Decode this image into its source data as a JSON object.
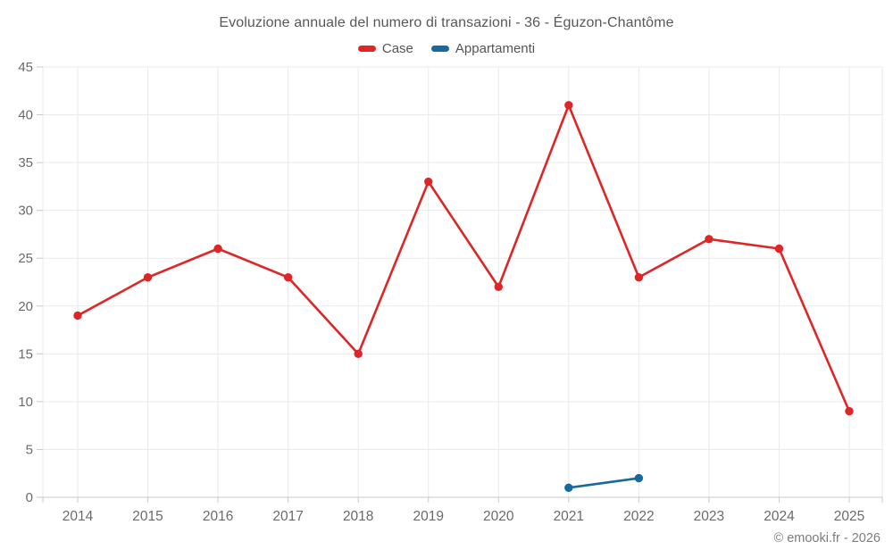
{
  "header": {
    "title": "Evoluzione annuale del numero di transazioni - 36 - Éguzon-Chantôme"
  },
  "footer": {
    "credit": "© emooki.fr - 2026"
  },
  "colors": {
    "case_red": "#de2626",
    "appartamenti_blue": "#17699e",
    "gridline": "#eaeaea",
    "axis_line": "#c9c9c9",
    "tick": "#c9c9c9",
    "axis_label": "#6b6b6b",
    "title_text": "#57585c",
    "legend_text": "#555558",
    "credit_text": "#7c7c7e"
  },
  "chart_data": {
    "type": "line",
    "title": "Evoluzione annuale del numero di transazioni - 36 - Éguzon-Chantôme",
    "categories": [
      "2014",
      "2015",
      "2016",
      "2017",
      "2018",
      "2019",
      "2020",
      "2021",
      "2022",
      "2023",
      "2024",
      "2025"
    ],
    "series": [
      {
        "name": "Case",
        "color": "#de2626",
        "values": [
          19,
          23,
          26,
          23,
          15,
          33,
          22,
          41,
          23,
          27,
          26,
          9
        ]
      },
      {
        "name": "Appartamenti",
        "color": "#17699e",
        "values": [
          null,
          null,
          null,
          null,
          null,
          null,
          null,
          1,
          2,
          null,
          null,
          null
        ]
      }
    ],
    "ylim": [
      0,
      45
    ],
    "yticks": [
      0,
      5,
      10,
      15,
      20,
      25,
      30,
      35,
      40,
      45
    ],
    "grid": true,
    "legend_position": "top",
    "marker": "circle"
  }
}
